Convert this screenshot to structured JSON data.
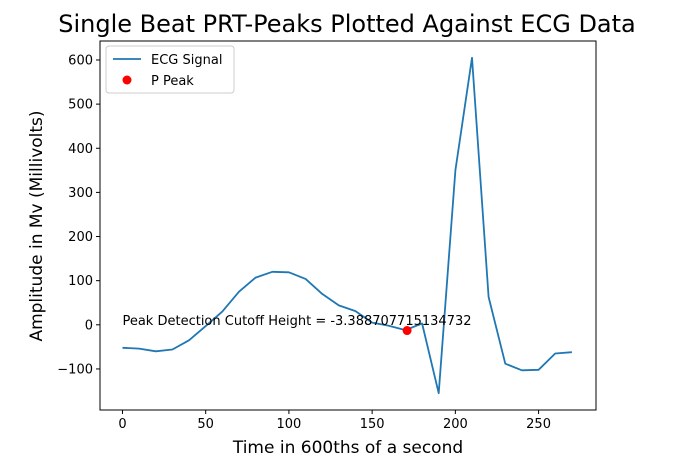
{
  "chart_data": {
    "type": "line",
    "title": "Single Beat PRT-Peaks Plotted Against ECG Data",
    "xlabel": "Time in 600ths of a second",
    "ylabel": "Amplitude in Mv (Millivolts)",
    "xlim": [
      -13.5,
      284.5
    ],
    "ylim": [
      -193,
      643
    ],
    "xticks": [
      0,
      50,
      100,
      150,
      200,
      250
    ],
    "yticks": [
      -100,
      0,
      100,
      200,
      300,
      400,
      500,
      600
    ],
    "xtick_labels": [
      "0",
      "50",
      "100",
      "150",
      "200",
      "250"
    ],
    "ytick_labels": [
      "−100",
      "0",
      "100",
      "200",
      "300",
      "400",
      "500",
      "600"
    ],
    "grid": false,
    "legend_position": "top-left",
    "series": [
      {
        "name": "ECG Signal",
        "kind": "line",
        "color": "#1f77b4",
        "x": [
          0,
          10,
          20,
          30,
          40,
          50,
          60,
          70,
          80,
          90,
          100,
          110,
          120,
          130,
          140,
          150,
          160,
          170,
          180,
          190,
          200,
          210,
          220,
          230,
          240,
          250,
          260,
          270
        ],
        "y": [
          -52,
          -54,
          -60,
          -56,
          -35,
          -3,
          30,
          75,
          107,
          120,
          119,
          104,
          70,
          44,
          31,
          5,
          -2,
          -12,
          3,
          -155,
          350,
          605,
          63,
          -88,
          -103,
          -102,
          -65,
          -62
        ]
      },
      {
        "name": "P Peak",
        "kind": "scatter",
        "color": "#ff0000",
        "x": [
          171
        ],
        "y": [
          -13
        ]
      }
    ],
    "annotations": [
      {
        "text": "Peak Detection Cutoff Height = -3.388707715134732",
        "x": 0,
        "y": 0
      }
    ]
  }
}
